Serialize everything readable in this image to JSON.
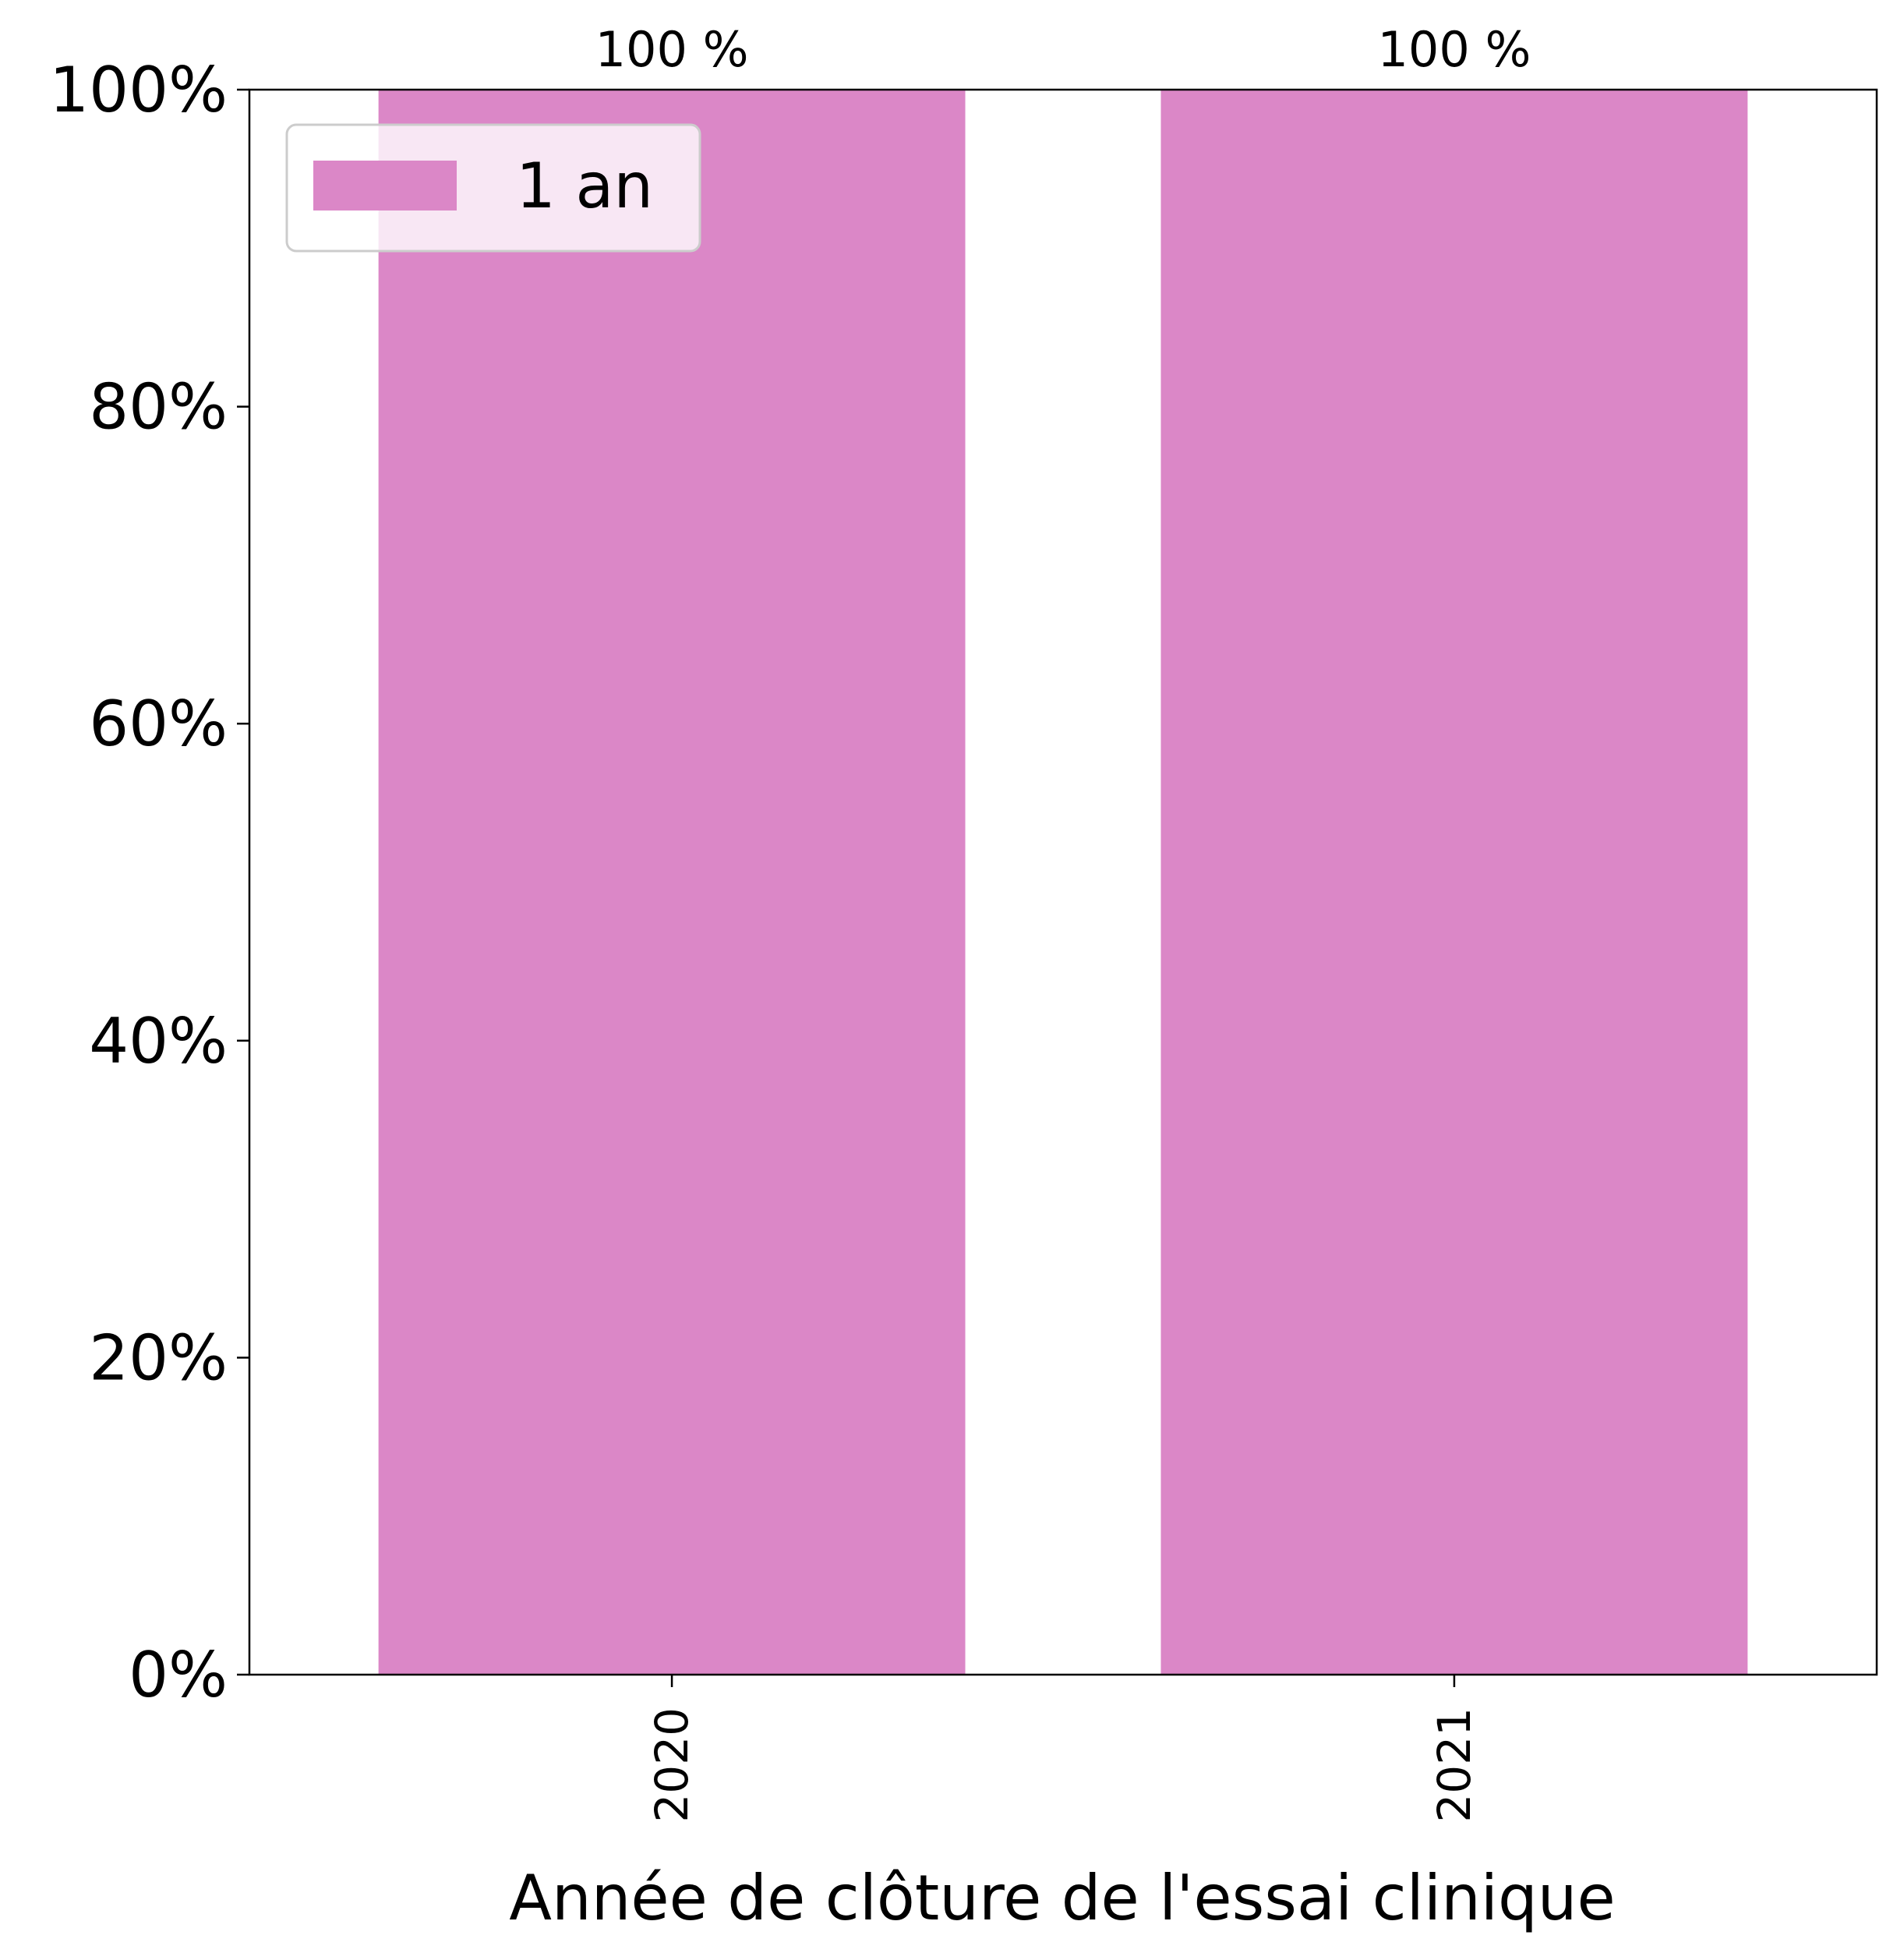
{
  "chart_data": {
    "type": "bar",
    "categories": [
      "2020",
      "2021"
    ],
    "series": [
      {
        "name": "1 an",
        "values": [
          100,
          100
        ],
        "color": "#db87c7"
      }
    ],
    "data_labels": [
      "100 %",
      "100 %"
    ],
    "xlabel": "Année de clôture de l'essai clinique",
    "ylabel": "",
    "ylim": [
      0,
      100
    ],
    "yticks": [
      0,
      20,
      40,
      60,
      80,
      100
    ],
    "ytick_labels": [
      "0%",
      "20%",
      "40%",
      "60%",
      "80%",
      "100%"
    ],
    "legend_position": "top-left",
    "grid": false
  }
}
